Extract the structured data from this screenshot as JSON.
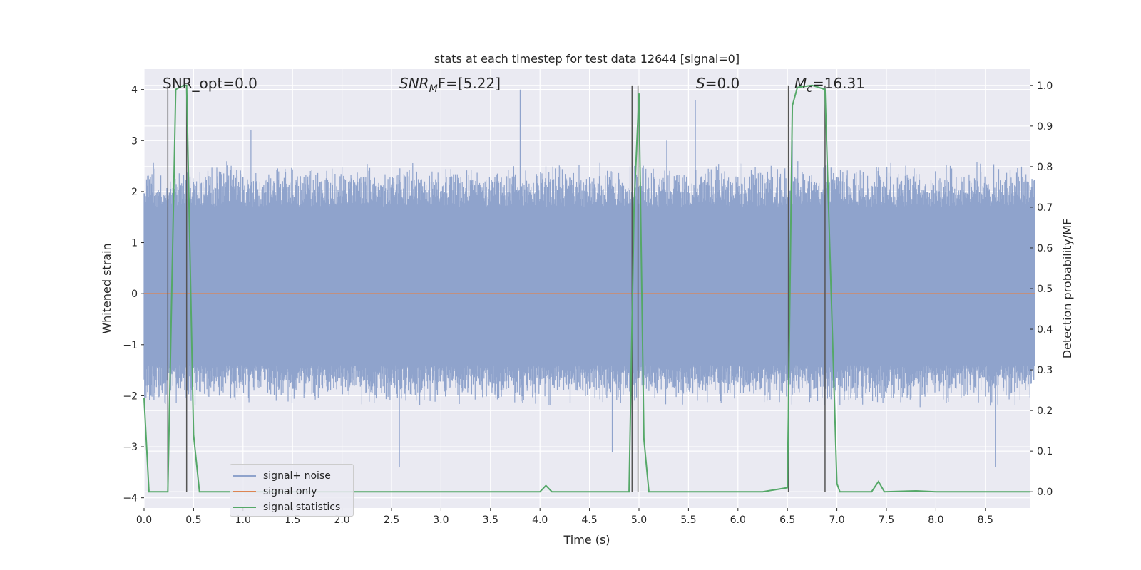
{
  "chart_data": {
    "type": "line",
    "title": "stats at each timestep for test data 12644 [signal=0]",
    "xlabel": "Time (s)",
    "ylabel": "Whitened strain",
    "y2label": "Detection probability/MF",
    "xlim": [
      0,
      9
    ],
    "ylim": [
      -4.2,
      4.4
    ],
    "y2lim": [
      -0.04,
      1.04
    ],
    "xticks": [
      "0.0",
      "0.5",
      "1.0",
      "1.5",
      "2.0",
      "2.5",
      "3.0",
      "3.5",
      "4.0",
      "4.5",
      "5.0",
      "5.5",
      "6.0",
      "6.5",
      "7.0",
      "7.5",
      "8.0",
      "8.5"
    ],
    "yticks": [
      "4",
      "3",
      "2",
      "1",
      "0",
      "−1",
      "−2",
      "−3",
      "−4"
    ],
    "y2ticks": [
      "1.0",
      "0.9",
      "0.8",
      "0.7",
      "0.6",
      "0.5",
      "0.4",
      "0.3",
      "0.2",
      "0.1",
      "0.0"
    ],
    "grid": true,
    "legend_position": "lower-left",
    "annotations": {
      "snr_opt": "SNR_opt=0.0",
      "snr_mf_main": "SNR",
      "snr_mf_sub": "M",
      "snr_mf_tail": "F=[5.22]",
      "s_main": "S",
      "s_tail": "=0.0",
      "mc_main": "M",
      "mc_sub": "c",
      "mc_tail": "=16.31"
    },
    "vertical_lines_s": [
      0.24,
      0.43,
      4.93,
      4.99,
      6.51,
      6.88
    ],
    "series": [
      {
        "name": "signal+ noise",
        "color": "#8fa3cc",
        "noise_envelope": {
          "x": [
            0.0,
            9.0
          ],
          "core_low": -1.4,
          "core_high": 1.7,
          "typical_peak": 2.4,
          "max": 4.0,
          "min": -3.4
        },
        "spikes": [
          {
            "x": 1.08,
            "y": 3.2
          },
          {
            "x": 3.8,
            "y": 4.0
          },
          {
            "x": 5.57,
            "y": 3.8
          },
          {
            "x": 5.28,
            "y": 3.0
          },
          {
            "x": 2.58,
            "y": -3.4
          },
          {
            "x": 8.6,
            "y": -3.4
          },
          {
            "x": 4.73,
            "y": -3.1
          },
          {
            "x": 0.27,
            "y": -1.9
          },
          {
            "x": 6.55,
            "y": 3.0
          }
        ]
      },
      {
        "name": "signal only",
        "color": "#dd8452",
        "x": [
          0,
          9
        ],
        "y": [
          0,
          0
        ]
      },
      {
        "name": "signal statistics",
        "color": "#55a868",
        "axis": "right",
        "x": [
          0.0,
          0.05,
          0.24,
          0.32,
          0.4,
          0.43,
          0.5,
          0.56,
          4.0,
          4.06,
          4.12,
          4.9,
          4.95,
          5.0,
          5.05,
          5.1,
          6.25,
          6.5,
          6.55,
          6.6,
          6.75,
          6.88,
          7.0,
          7.03,
          7.35,
          7.42,
          7.48,
          7.8,
          8.0,
          8.95
        ],
        "y": [
          0.23,
          0.0,
          0.0,
          0.99,
          1.0,
          1.0,
          0.14,
          0.0,
          0.0,
          0.015,
          0.0,
          0.0,
          0.7,
          0.98,
          0.13,
          0.0,
          0.0,
          0.01,
          0.95,
          0.995,
          1.0,
          0.99,
          0.02,
          0.0,
          0.0,
          0.025,
          0.0,
          0.002,
          0.0,
          0.0
        ]
      }
    ]
  }
}
